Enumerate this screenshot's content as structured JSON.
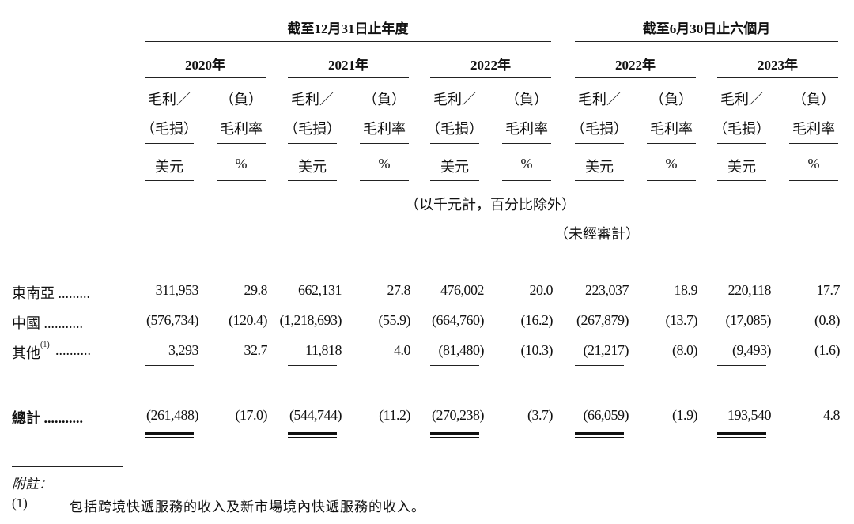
{
  "header": {
    "group_full_year": "截至12月31日止年度",
    "group_six_months": "截至6月30日止六個月",
    "years": [
      "2020年",
      "2021年",
      "2022年",
      "2022年",
      "2023年"
    ],
    "col_amount_line1": "毛利／",
    "col_amount_line2": "（毛損）",
    "col_margin_line1": "（負）",
    "col_margin_line2": "毛利率",
    "unit_amount": "美元",
    "unit_margin": "%",
    "note_thousands": "（以千元計，百分比除外）",
    "note_unaudited": "（未經審計）"
  },
  "rows": [
    {
      "label": "東南亞 .........",
      "values": [
        "311,953",
        "29.8",
        "662,131",
        "27.8",
        "476,002",
        "20.0",
        "223,037",
        "18.9",
        "220,118",
        "17.7"
      ]
    },
    {
      "label": "中國 ...........",
      "values": [
        "(576,734)",
        "(120.4)",
        "(1,218,693)",
        "(55.9)",
        "(664,760)",
        "(16.2)",
        "(267,879)",
        "(13.7)",
        "(17,085)",
        "(0.8)"
      ]
    },
    {
      "label": "其他",
      "label_sup": "(1)",
      "label_dots": "..........",
      "values": [
        "3,293",
        "32.7",
        "11,818",
        "4.0",
        "(81,480)",
        "(10.3)",
        "(21,217)",
        "(8.0)",
        "(9,493)",
        "(1.6)"
      ]
    }
  ],
  "total": {
    "label": "總計 ...........",
    "values": [
      "(261,488)",
      "(17.0)",
      "(544,744)",
      "(11.2)",
      "(270,238)",
      "(3.7)",
      "(66,059)",
      "(1.9)",
      "193,540",
      "4.8"
    ]
  },
  "footnotes": {
    "heading": "附註：",
    "items": [
      {
        "marker": "(1)",
        "text": "包括跨境快遞服務的收入及新市場境內快遞服務的收入。"
      }
    ]
  }
}
